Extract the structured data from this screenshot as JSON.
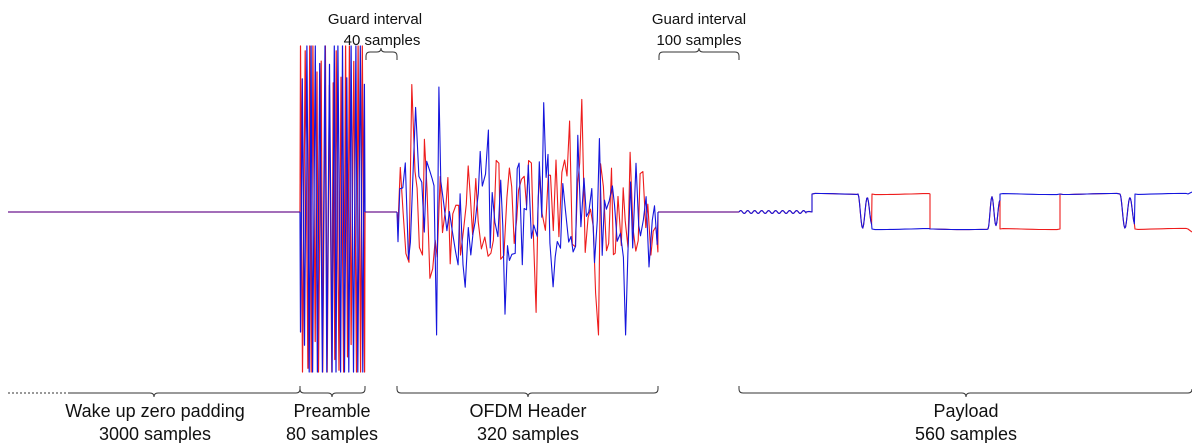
{
  "colors": {
    "trace_a": "#1515dd",
    "trace_b": "#ee1c1c",
    "brace": "#333333"
  },
  "segments": [
    {
      "name": "Wake up zero padding",
      "samples": "3000 samples"
    },
    {
      "name": "Preamble",
      "samples": "80 samples"
    },
    {
      "name": "OFDM Header",
      "samples": "320 samples"
    },
    {
      "name": "Payload",
      "samples": "560 samples"
    }
  ],
  "guards": [
    {
      "title": "Guard interval",
      "samples": "40 samples"
    },
    {
      "title": "Guard interval",
      "samples": "100 samples"
    }
  ]
}
